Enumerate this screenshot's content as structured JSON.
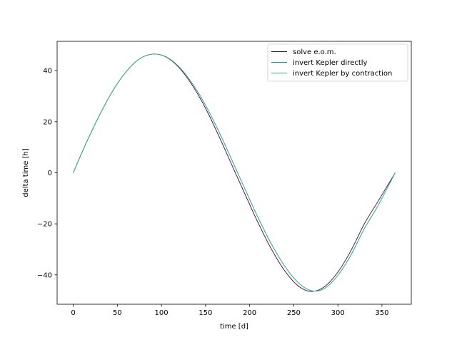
{
  "chart_data": {
    "type": "line",
    "title": "",
    "xlabel": "time [d]",
    "ylabel": "delta time [h]",
    "xlim": [
      -18.25,
      383.25
    ],
    "ylim": [
      -51.5,
      51.5
    ],
    "xticks": [
      0,
      50,
      100,
      150,
      200,
      250,
      300,
      350
    ],
    "xtick_labels": [
      "0",
      "50",
      "100",
      "150",
      "200",
      "250",
      "300",
      "350"
    ],
    "yticks": [
      -40,
      -20,
      0,
      20,
      40
    ],
    "ytick_labels": [
      "−40",
      "−20",
      "0",
      "20",
      "40"
    ],
    "grid": false,
    "legend": "upper-right",
    "series": [
      {
        "name": "solve e.o.m.",
        "color": "#440154",
        "x": [
          0,
          15,
          30,
          45,
          60,
          75,
          90,
          105,
          120,
          135,
          150,
          165,
          180,
          195,
          210,
          225,
          240,
          255,
          270,
          285,
          300,
          315,
          330,
          345,
          365
        ],
        "y": [
          0,
          11.9,
          22.7,
          32.2,
          39.6,
          44.6,
          46.5,
          45.4,
          41.2,
          34.3,
          25.3,
          14.5,
          2.9,
          -8.6,
          -19.9,
          -30.1,
          -38.5,
          -44.3,
          -46.5,
          -44.6,
          -38.9,
          -30.4,
          -20.0,
          -11.5,
          0
        ]
      },
      {
        "name": "invert Kepler directly",
        "color": "#21918c",
        "x": [
          0,
          15,
          30,
          45,
          60,
          75,
          90,
          105,
          120,
          135,
          150,
          165,
          180,
          195,
          210,
          225,
          240,
          255,
          270,
          285,
          300,
          315,
          330,
          345,
          365
        ],
        "y": [
          0,
          11.9,
          22.7,
          32.2,
          39.6,
          44.6,
          46.5,
          45.5,
          41.5,
          35.0,
          26.5,
          16.2,
          4.9,
          -6.6,
          -17.9,
          -28.1,
          -36.7,
          -43.0,
          -46.2,
          -45.3,
          -40.2,
          -32.1,
          -21.9,
          -13.2,
          0
        ]
      },
      {
        "name": "invert Kepler by contraction",
        "color": "#35b779",
        "x": [
          0,
          15,
          30,
          45,
          60,
          75,
          90,
          105,
          120,
          135,
          150,
          165,
          180,
          195,
          210,
          225,
          240,
          255,
          270,
          285,
          300,
          315,
          330,
          345,
          365
        ],
        "y": [
          0,
          11.9,
          22.7,
          32.2,
          39.6,
          44.6,
          46.5,
          45.5,
          41.5,
          35.0,
          26.5,
          16.2,
          4.9,
          -6.6,
          -17.9,
          -28.1,
          -36.7,
          -43.0,
          -46.2,
          -45.3,
          -40.2,
          -32.1,
          -21.9,
          -13.2,
          0
        ]
      }
    ]
  }
}
